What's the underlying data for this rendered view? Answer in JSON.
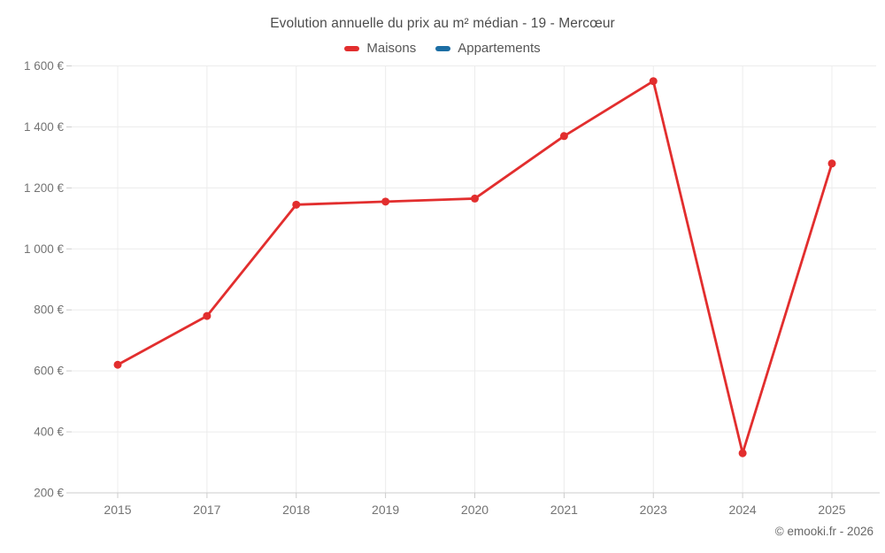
{
  "chart": {
    "title": "Evolution annuelle du prix au m² médian - 19 - Mercœur",
    "watermark": "© emooki.fr - 2026",
    "legend": [
      {
        "label": "Maisons",
        "color": "#e22e2e"
      },
      {
        "label": "Appartements",
        "color": "#1c6ea4"
      }
    ],
    "colors": {
      "background": "#ffffff",
      "grid": "#ececec",
      "axis": "#cccccc",
      "tick_label": "#737373",
      "title_text": "#4c4c4c",
      "legend_text": "#565656",
      "watermark_text": "#666666",
      "maisons": "#e22e2e",
      "appartements": "#1c6ea4"
    }
  },
  "chart_data": {
    "type": "line",
    "title": "Evolution annuelle du prix au m² médian - 19 - Mercœur",
    "categories": [
      "2015",
      "2017",
      "2018",
      "2019",
      "2020",
      "2021",
      "2023",
      "2024",
      "2025"
    ],
    "series": [
      {
        "name": "Maisons",
        "color": "#e22e2e",
        "values": [
          620,
          780,
          1145,
          1155,
          1165,
          1370,
          1550,
          330,
          1280
        ]
      },
      {
        "name": "Appartements",
        "color": "#1c6ea4",
        "values": []
      }
    ],
    "xlabel": "",
    "ylabel": "",
    "unit": "€",
    "ylim": [
      200,
      1600
    ],
    "ytick_step": 200,
    "ytick_labels": [
      "200 €",
      "400 €",
      "600 €",
      "800 €",
      "1 000 €",
      "1 200 €",
      "1 400 €",
      "1 600 €"
    ],
    "grid": true,
    "legend_position": "top",
    "marker": "circle"
  }
}
